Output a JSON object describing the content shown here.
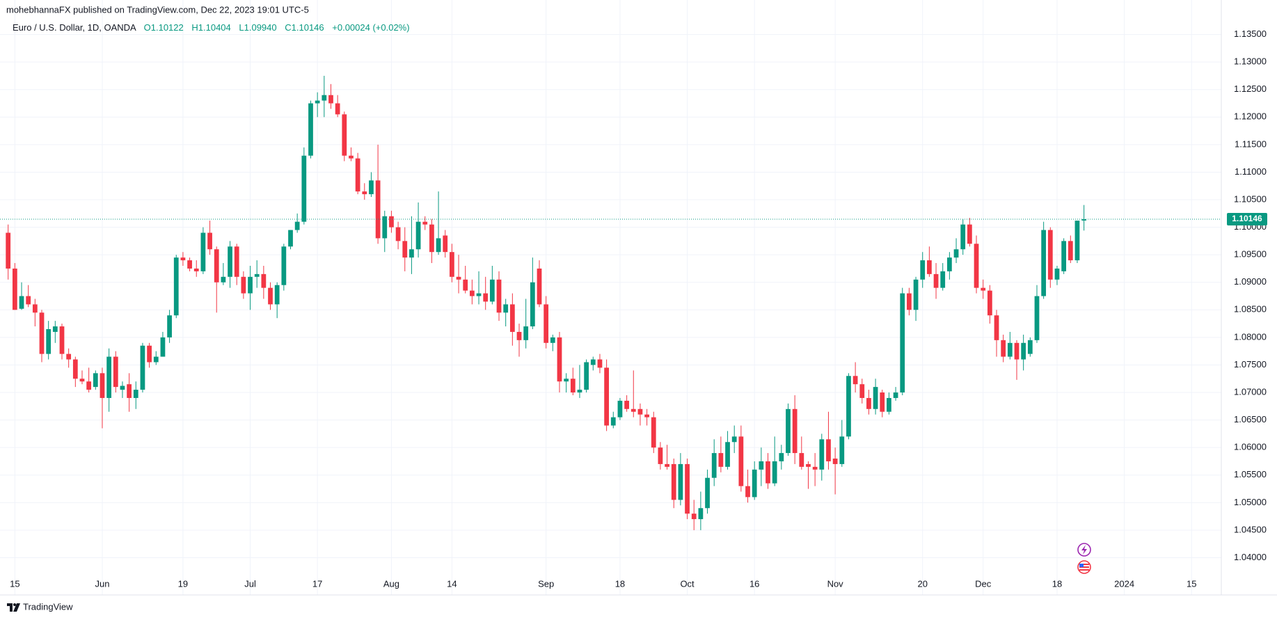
{
  "header": {
    "published": "mohebhannaFX published on TradingView.com, Dec 22, 2023 19:01 UTC-5"
  },
  "footer": {
    "brand": "TradingView"
  },
  "chart_data": {
    "type": "candlestick",
    "title": "Euro / U.S. Dollar, 1D, OANDA",
    "ohlc_legend": [
      "O1.10122",
      "H1.10404",
      "L1.09940",
      "C1.10146",
      "+0.00024 (+0.02%)"
    ],
    "up_color": "#089981",
    "down_color": "#f23645",
    "last_price": 1.10146,
    "grid": true,
    "ylim": [
      1.0369,
      1.14
    ],
    "yticks": [
      {
        "value": 1.04,
        "label": "1.04000"
      },
      {
        "value": 1.045,
        "label": "1.04500"
      },
      {
        "value": 1.05,
        "label": "1.05000"
      },
      {
        "value": 1.055,
        "label": "1.05500"
      },
      {
        "value": 1.06,
        "label": "1.06000"
      },
      {
        "value": 1.065,
        "label": "1.06500"
      },
      {
        "value": 1.07,
        "label": "1.07000"
      },
      {
        "value": 1.075,
        "label": "1.07500"
      },
      {
        "value": 1.08,
        "label": "1.08000"
      },
      {
        "value": 1.085,
        "label": "1.08500"
      },
      {
        "value": 1.09,
        "label": "1.09000"
      },
      {
        "value": 1.095,
        "label": "1.09500"
      },
      {
        "value": 1.1,
        "label": "1.10000"
      },
      {
        "value": 1.105,
        "label": "1.10500"
      },
      {
        "value": 1.11,
        "label": "1.11000"
      },
      {
        "value": 1.115,
        "label": "1.11500"
      },
      {
        "value": 1.12,
        "label": "1.12000"
      },
      {
        "value": 1.125,
        "label": "1.12500"
      },
      {
        "value": 1.13,
        "label": "1.13000"
      },
      {
        "value": 1.135,
        "label": "1.13500"
      }
    ],
    "categories": [
      null,
      "15",
      null,
      null,
      null,
      null,
      null,
      null,
      null,
      null,
      null,
      null,
      null,
      null,
      "Jun",
      null,
      null,
      null,
      null,
      null,
      null,
      null,
      null,
      null,
      null,
      null,
      "19",
      null,
      null,
      null,
      null,
      null,
      null,
      null,
      null,
      null,
      "Jul",
      null,
      null,
      null,
      null,
      null,
      null,
      null,
      null,
      null,
      "17",
      null,
      null,
      null,
      null,
      null,
      null,
      null,
      null,
      null,
      null,
      "Aug",
      null,
      null,
      null,
      null,
      null,
      null,
      null,
      null,
      "14",
      null,
      null,
      null,
      null,
      null,
      null,
      null,
      null,
      null,
      null,
      null,
      null,
      null,
      "Sep",
      null,
      null,
      null,
      null,
      null,
      null,
      null,
      null,
      null,
      null,
      "18",
      null,
      null,
      null,
      null,
      null,
      null,
      null,
      null,
      null,
      "Oct",
      null,
      null,
      null,
      null,
      null,
      null,
      null,
      null,
      null,
      "16",
      null,
      null,
      null,
      null,
      null,
      null,
      null,
      null,
      null,
      null,
      null,
      "Nov",
      null,
      null,
      null,
      null,
      null,
      null,
      null,
      null,
      null,
      null,
      null,
      null,
      "20",
      null,
      null,
      null,
      null,
      null,
      null,
      null,
      null,
      "Dec",
      null,
      null,
      null,
      null,
      null,
      null,
      null,
      null,
      null,
      null,
      "18",
      null,
      null,
      null,
      null,
      null,
      null,
      null,
      null,
      null,
      "2024",
      null,
      null,
      null,
      null,
      null,
      null,
      null,
      null,
      null,
      "15"
    ],
    "candles": [
      [
        1.099,
        1.1005,
        1.0905,
        1.0925
      ],
      [
        1.0925,
        1.0935,
        1.085,
        1.085
      ],
      [
        1.0852,
        1.09,
        1.085,
        1.0875
      ],
      [
        1.0875,
        1.0895,
        1.0855,
        1.086
      ],
      [
        1.086,
        1.087,
        1.082,
        1.0845
      ],
      [
        1.0845,
        1.085,
        1.0755,
        1.077
      ],
      [
        1.077,
        1.083,
        1.076,
        1.0815
      ],
      [
        1.081,
        1.083,
        1.079,
        1.082
      ],
      [
        1.082,
        1.0825,
        1.076,
        1.077
      ],
      [
        1.077,
        1.078,
        1.0745,
        1.076
      ],
      [
        1.076,
        1.0765,
        1.071,
        1.0725
      ],
      [
        1.0725,
        1.074,
        1.0715,
        1.072
      ],
      [
        1.072,
        1.0745,
        1.07,
        1.0705
      ],
      [
        1.071,
        1.074,
        1.0705,
        1.0735
      ],
      [
        1.0735,
        1.0745,
        1.0635,
        1.069
      ],
      [
        1.069,
        1.078,
        1.0665,
        1.0765
      ],
      [
        1.0765,
        1.0775,
        1.07,
        1.071
      ],
      [
        1.0705,
        1.072,
        1.069,
        1.0712
      ],
      [
        1.0715,
        1.0735,
        1.0665,
        1.069
      ],
      [
        1.069,
        1.072,
        1.067,
        1.0705
      ],
      [
        1.0705,
        1.079,
        1.07,
        1.0785
      ],
      [
        1.0785,
        1.079,
        1.0745,
        1.0755
      ],
      [
        1.0755,
        1.0775,
        1.075,
        1.0765
      ],
      [
        1.0765,
        1.081,
        1.0765,
        1.08
      ],
      [
        1.08,
        1.085,
        1.079,
        1.084
      ],
      [
        1.084,
        1.095,
        1.0835,
        1.0945
      ],
      [
        1.0945,
        1.0955,
        1.093,
        1.094
      ],
      [
        1.094,
        1.0945,
        1.092,
        1.0925
      ],
      [
        1.0925,
        1.094,
        1.091,
        1.092
      ],
      [
        1.092,
        1.1,
        1.0915,
        1.099
      ],
      [
        1.099,
        1.1012,
        1.095,
        1.096
      ],
      [
        1.096,
        1.0965,
        1.0845,
        1.09
      ],
      [
        1.09,
        1.0935,
        1.0895,
        1.091
      ],
      [
        1.091,
        1.0975,
        1.089,
        1.0965
      ],
      [
        1.0965,
        1.097,
        1.0895,
        1.091
      ],
      [
        1.091,
        1.092,
        1.087,
        1.088
      ],
      [
        1.088,
        1.093,
        1.085,
        1.091
      ],
      [
        1.091,
        1.094,
        1.089,
        1.0915
      ],
      [
        1.0915,
        1.093,
        1.087,
        1.089
      ],
      [
        1.089,
        1.09,
        1.085,
        1.086
      ],
      [
        1.086,
        1.09,
        1.0835,
        1.0895
      ],
      [
        1.0895,
        1.097,
        1.0885,
        1.0965
      ],
      [
        1.0965,
        1.0995,
        1.096,
        1.0995
      ],
      [
        1.0995,
        1.1025,
        1.099,
        1.101
      ],
      [
        1.101,
        1.1145,
        1.1005,
        1.113
      ],
      [
        1.113,
        1.123,
        1.1125,
        1.1225
      ],
      [
        1.1225,
        1.1245,
        1.12,
        1.123
      ],
      [
        1.123,
        1.1275,
        1.12,
        1.124
      ],
      [
        1.124,
        1.126,
        1.1215,
        1.1225
      ],
      [
        1.1225,
        1.124,
        1.12,
        1.1205
      ],
      [
        1.1205,
        1.121,
        1.112,
        1.113
      ],
      [
        1.113,
        1.1145,
        1.112,
        1.1125
      ],
      [
        1.1125,
        1.1135,
        1.106,
        1.1065
      ],
      [
        1.1065,
        1.108,
        1.105,
        1.106
      ],
      [
        1.106,
        1.11,
        1.1055,
        1.1085
      ],
      [
        1.1085,
        1.115,
        1.097,
        1.098
      ],
      [
        1.098,
        1.103,
        1.0955,
        1.102
      ],
      [
        1.102,
        1.103,
        1.099,
        1.1
      ],
      [
        1.1,
        1.101,
        1.096,
        1.0975
      ],
      [
        1.0975,
        1.1,
        1.092,
        1.0945
      ],
      [
        1.0945,
        1.102,
        1.0915,
        1.096
      ],
      [
        1.096,
        1.1045,
        1.0945,
        1.101
      ],
      [
        1.101,
        1.102,
        1.0995,
        1.1005
      ],
      [
        1.1005,
        1.1015,
        1.0935,
        1.0955
      ],
      [
        1.0955,
        1.1065,
        1.095,
        1.098
      ],
      [
        1.0985,
        1.0995,
        1.0945,
        1.0955
      ],
      [
        1.0955,
        1.097,
        1.09,
        1.091
      ],
      [
        1.091,
        1.095,
        1.088,
        1.0905
      ],
      [
        1.0905,
        1.093,
        1.088,
        1.0885
      ],
      [
        1.0885,
        1.0905,
        1.086,
        1.0875
      ],
      [
        1.0875,
        1.092,
        1.086,
        1.088
      ],
      [
        1.088,
        1.091,
        1.085,
        1.0865
      ],
      [
        1.0865,
        1.093,
        1.086,
        1.0905
      ],
      [
        1.0905,
        1.092,
        1.083,
        1.0845
      ],
      [
        1.0845,
        1.087,
        1.082,
        1.086
      ],
      [
        1.086,
        1.088,
        1.0785,
        1.081
      ],
      [
        1.081,
        1.0825,
        1.0765,
        1.0795
      ],
      [
        1.0795,
        1.087,
        1.078,
        1.082
      ],
      [
        1.082,
        1.0945,
        1.0815,
        1.09
      ],
      [
        1.0925,
        1.094,
        1.0855,
        1.086
      ],
      [
        1.086,
        1.0875,
        1.078,
        1.079
      ],
      [
        1.079,
        1.0805,
        1.0775,
        1.08
      ],
      [
        1.08,
        1.081,
        1.07,
        1.072
      ],
      [
        1.072,
        1.0735,
        1.07,
        1.0725
      ],
      [
        1.0725,
        1.0745,
        1.0695,
        1.07
      ],
      [
        1.07,
        1.075,
        1.069,
        1.0705
      ],
      [
        1.0705,
        1.076,
        1.07,
        1.0755
      ],
      [
        1.075,
        1.0765,
        1.074,
        1.076
      ],
      [
        1.076,
        1.077,
        1.0735,
        1.0745
      ],
      [
        1.0745,
        1.076,
        1.063,
        1.064
      ],
      [
        1.064,
        1.0665,
        1.0635,
        1.0655
      ],
      [
        1.0655,
        1.069,
        1.065,
        1.0685
      ],
      [
        1.0685,
        1.0695,
        1.0665,
        1.067
      ],
      [
        1.067,
        1.074,
        1.0655,
        1.0665
      ],
      [
        1.067,
        1.068,
        1.064,
        1.066
      ],
      [
        1.066,
        1.067,
        1.064,
        1.0655
      ],
      [
        1.0655,
        1.0665,
        1.059,
        1.06
      ],
      [
        1.06,
        1.061,
        1.056,
        1.057
      ],
      [
        1.057,
        1.0605,
        1.056,
        1.0565
      ],
      [
        1.057,
        1.058,
        1.049,
        1.0505
      ],
      [
        1.0505,
        1.059,
        1.0495,
        1.057
      ],
      [
        1.057,
        1.058,
        1.047,
        1.048
      ],
      [
        1.048,
        1.0505,
        1.045,
        1.047
      ],
      [
        1.047,
        1.052,
        1.045,
        1.049
      ],
      [
        1.049,
        1.056,
        1.048,
        1.0545
      ],
      [
        1.0545,
        1.0615,
        1.053,
        1.059
      ],
      [
        1.059,
        1.062,
        1.0555,
        1.0565
      ],
      [
        1.0565,
        1.063,
        1.056,
        1.061
      ],
      [
        1.061,
        1.064,
        1.059,
        1.062
      ],
      [
        1.062,
        1.064,
        1.052,
        1.053
      ],
      [
        1.053,
        1.056,
        1.05,
        1.051
      ],
      [
        1.051,
        1.0575,
        1.0505,
        1.056
      ],
      [
        1.056,
        1.06,
        1.053,
        1.0575
      ],
      [
        1.0575,
        1.059,
        1.0525,
        1.0535
      ],
      [
        1.0535,
        1.062,
        1.053,
        1.0575
      ],
      [
        1.0575,
        1.0605,
        1.056,
        1.059
      ],
      [
        1.059,
        1.068,
        1.0585,
        1.067
      ],
      [
        1.067,
        1.0695,
        1.057,
        1.059
      ],
      [
        1.059,
        1.062,
        1.056,
        1.0565
      ],
      [
        1.057,
        1.0575,
        1.0525,
        1.0565
      ],
      [
        1.0565,
        1.059,
        1.053,
        1.056
      ],
      [
        1.056,
        1.0625,
        1.054,
        1.0615
      ],
      [
        1.0615,
        1.0665,
        1.056,
        1.0575
      ],
      [
        1.058,
        1.06,
        1.0515,
        1.057
      ],
      [
        1.057,
        1.065,
        1.0565,
        1.062
      ],
      [
        1.062,
        1.0735,
        1.0615,
        1.073
      ],
      [
        1.073,
        1.0755,
        1.07,
        1.0715
      ],
      [
        1.0715,
        1.0725,
        1.068,
        1.069
      ],
      [
        1.069,
        1.0705,
        1.066,
        1.067
      ],
      [
        1.067,
        1.0725,
        1.066,
        1.071
      ],
      [
        1.07,
        1.0705,
        1.0655,
        1.0665
      ],
      [
        1.0665,
        1.07,
        1.066,
        1.069
      ],
      [
        1.069,
        1.071,
        1.0685,
        1.07
      ],
      [
        1.07,
        1.089,
        1.0695,
        1.088
      ],
      [
        1.088,
        1.089,
        1.084,
        1.085
      ],
      [
        1.085,
        1.091,
        1.083,
        1.0905
      ],
      [
        1.0905,
        1.0955,
        1.089,
        1.094
      ],
      [
        1.094,
        1.0965,
        1.091,
        1.0915
      ],
      [
        1.0915,
        1.0935,
        1.087,
        1.089
      ],
      [
        1.089,
        1.0935,
        1.0885,
        1.092
      ],
      [
        1.092,
        1.0955,
        1.0905,
        1.0945
      ],
      [
        1.0945,
        1.098,
        1.0935,
        1.096
      ],
      [
        1.096,
        1.1015,
        1.095,
        1.1005
      ],
      [
        1.1005,
        1.1017,
        1.0965,
        1.097
      ],
      [
        1.097,
        1.0985,
        1.088,
        1.089
      ],
      [
        1.089,
        1.0905,
        1.087,
        1.0885
      ],
      [
        1.0885,
        1.0895,
        1.0825,
        1.084
      ],
      [
        1.084,
        1.085,
        1.0765,
        1.0795
      ],
      [
        1.0795,
        1.0805,
        1.0755,
        1.0765
      ],
      [
        1.0765,
        1.081,
        1.076,
        1.079
      ],
      [
        1.079,
        1.0795,
        1.0723,
        1.076
      ],
      [
        1.076,
        1.0805,
        1.074,
        1.079
      ],
      [
        1.077,
        1.08,
        1.0765,
        1.0795
      ],
      [
        1.0795,
        1.0895,
        1.079,
        1.0875
      ],
      [
        1.0875,
        1.101,
        1.087,
        1.0995
      ],
      [
        1.0995,
        1.1,
        1.089,
        1.0905
      ],
      [
        1.0905,
        1.093,
        1.0895,
        1.0925
      ],
      [
        1.092,
        1.098,
        1.0915,
        1.0975
      ],
      [
        1.0975,
        1.0985,
        1.0935,
        1.094
      ],
      [
        1.094,
        1.1012,
        1.0935,
        1.1012
      ],
      [
        1.10122,
        1.10404,
        1.0994,
        1.10146
      ],
      null,
      null,
      null,
      null,
      null,
      null,
      null,
      null,
      null,
      null,
      null,
      null,
      null,
      null,
      null,
      null
    ]
  }
}
